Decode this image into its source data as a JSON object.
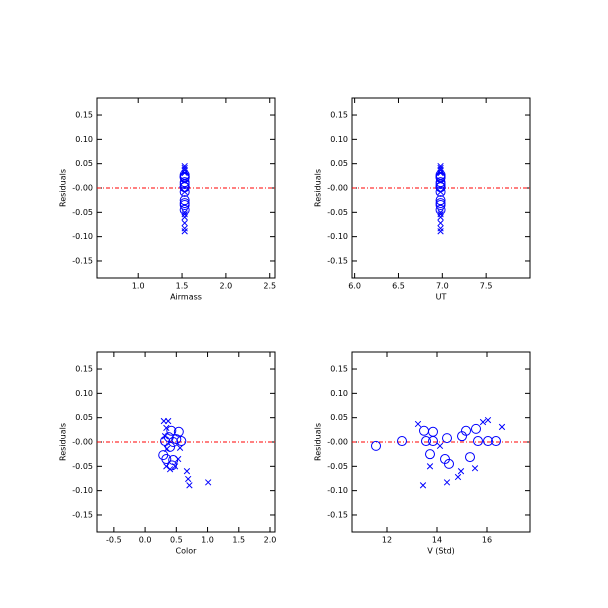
{
  "chart_data": [
    {
      "type": "scatter",
      "x_label": "Airmass",
      "y_label": "Residuals",
      "xlim": [
        0.53,
        2.56
      ],
      "ylim": [
        -0.185,
        0.185
      ],
      "xticks": [
        {
          "value": 1,
          "label": "1.0"
        },
        1.5,
        {
          "value": 2,
          "label": "2.0"
        },
        2.5
      ],
      "yticks": [
        {
          "value": -0.15,
          "label": "-0.15"
        },
        {
          "value": -0.1,
          "label": "-0.10"
        },
        {
          "value": -0.05,
          "label": "-0.05"
        },
        {
          "value": 0,
          "label": "-0.00"
        },
        {
          "value": 0.05,
          "label": "0.05"
        },
        {
          "value": 0.1,
          "label": "0.10"
        },
        0.15
      ],
      "hline": 0,
      "hline_color": "#ff0000",
      "series": [
        {
          "marker": "circle",
          "color": "#0000ff",
          "x": [
            1.53,
            1.53,
            1.53,
            1.53,
            1.53,
            1.53,
            1.53,
            1.53,
            1.53,
            1.53,
            1.53,
            1.53,
            1.53,
            1.53,
            1.53,
            1.53,
            1.53
          ],
          "y": [
            -0.008,
            0.002,
            0.023,
            0.002,
            -0.025,
            0.021,
            0.002,
            -0.035,
            -0.045,
            0.008,
            0.012,
            0.023,
            -0.031,
            0.027,
            0.002,
            0.002,
            0.002
          ]
        },
        {
          "marker": "cross",
          "color": "#0000ff",
          "x": [
            1.53,
            1.53,
            1.53,
            1.53,
            1.53,
            1.53,
            1.53,
            1.53,
            1.53,
            1.53,
            1.53
          ],
          "y": [
            0.037,
            -0.089,
            -0.05,
            -0.083,
            -0.072,
            -0.06,
            -0.054,
            0.041,
            0.045,
            0.031,
            -0.008
          ]
        }
      ]
    },
    {
      "type": "scatter",
      "x_label": "UT",
      "y_label": "Residuals",
      "xlim": [
        5.97,
        8.0
      ],
      "ylim": [
        -0.185,
        0.185
      ],
      "xticks": [
        {
          "value": 6,
          "label": "6.0"
        },
        6.5,
        {
          "value": 7,
          "label": "7.0"
        },
        7.5
      ],
      "yticks": [
        {
          "value": -0.15,
          "label": "-0.15"
        },
        {
          "value": -0.1,
          "label": "-0.10"
        },
        {
          "value": -0.05,
          "label": "-0.05"
        },
        {
          "value": 0,
          "label": "-0.00"
        },
        {
          "value": 0.05,
          "label": "0.05"
        },
        {
          "value": 0.1,
          "label": "0.10"
        },
        0.15
      ],
      "hline": 0,
      "hline_color": "#ff0000",
      "series": [
        {
          "marker": "circle",
          "color": "#0000ff",
          "x": [
            6.98,
            6.98,
            6.98,
            6.98,
            6.98,
            6.98,
            6.98,
            6.98,
            6.98,
            6.98,
            6.98,
            6.98,
            6.98,
            6.98,
            6.98,
            6.98,
            6.98
          ],
          "y": [
            -0.008,
            0.002,
            0.023,
            0.002,
            -0.025,
            0.021,
            0.002,
            -0.035,
            -0.045,
            0.008,
            0.012,
            0.023,
            -0.031,
            0.027,
            0.002,
            0.002,
            0.002
          ]
        },
        {
          "marker": "cross",
          "color": "#0000ff",
          "x": [
            6.98,
            6.98,
            6.98,
            6.98,
            6.98,
            6.98,
            6.98,
            6.98,
            6.98,
            6.98,
            6.98
          ],
          "y": [
            0.037,
            -0.089,
            -0.05,
            -0.083,
            -0.072,
            -0.06,
            -0.054,
            0.041,
            0.045,
            0.031,
            -0.008
          ]
        }
      ]
    },
    {
      "type": "scatter",
      "x_label": "Color",
      "y_label": "Residuals",
      "xlim": [
        -0.77,
        2.08
      ],
      "ylim": [
        -0.185,
        0.185
      ],
      "xticks": [
        {
          "value": -0.5,
          "label": "-0.5"
        },
        {
          "value": 0,
          "label": "0.0"
        },
        0.5,
        {
          "value": 1,
          "label": "1.0"
        },
        1.5,
        {
          "value": 2,
          "label": "2.0"
        }
      ],
      "yticks": [
        {
          "value": -0.15,
          "label": "-0.15"
        },
        {
          "value": -0.1,
          "label": "-0.10"
        },
        {
          "value": -0.05,
          "label": "-0.05"
        },
        {
          "value": 0,
          "label": "-0.00"
        },
        {
          "value": 0.05,
          "label": "0.05"
        },
        {
          "value": 0.1,
          "label": "0.10"
        },
        0.15
      ],
      "hline": 0,
      "hline_color": "#ff0000",
      "series": [
        {
          "marker": "circle",
          "color": "#0000ff",
          "x": [
            0.29,
            0.34,
            0.32,
            0.38,
            0.42,
            0.45,
            0.5,
            0.54,
            0.58,
            0.45,
            0.43,
            0.4
          ],
          "y": [
            -0.027,
            -0.035,
            0.002,
            0.01,
            0.023,
            0.0,
            0.006,
            0.021,
            0.002,
            -0.037,
            -0.048,
            -0.01
          ]
        },
        {
          "marker": "cross",
          "color": "#0000ff",
          "x": [
            0.3,
            0.37,
            0.34,
            0.32,
            0.35,
            0.34,
            0.4,
            0.48,
            0.53,
            0.67,
            0.69,
            0.71,
            1.01,
            0.56
          ],
          "y": [
            0.043,
            0.043,
            0.029,
            0.012,
            -0.014,
            -0.05,
            -0.056,
            -0.05,
            -0.035,
            -0.06,
            -0.076,
            -0.089,
            -0.083,
            -0.012
          ]
        }
      ]
    },
    {
      "type": "scatter",
      "x_label": "V (Std)",
      "y_label": "Residuals",
      "xlim": [
        10.6,
        17.72
      ],
      "ylim": [
        -0.185,
        0.185
      ],
      "xticks": [
        12,
        14,
        16
      ],
      "yticks": [
        {
          "value": -0.15,
          "label": "-0.15"
        },
        {
          "value": -0.1,
          "label": "-0.10"
        },
        {
          "value": -0.05,
          "label": "-0.05"
        },
        {
          "value": 0,
          "label": "-0.00"
        },
        {
          "value": 0.05,
          "label": "0.05"
        },
        {
          "value": 0.1,
          "label": "0.10"
        },
        0.15
      ],
      "hline": 0,
      "hline_color": "#ff0000",
      "series": [
        {
          "marker": "circle",
          "color": "#0000ff",
          "x": [
            11.56,
            12.6,
            13.48,
            13.56,
            13.72,
            13.84,
            13.84,
            14.32,
            14.48,
            14.4,
            15.0,
            15.16,
            15.32,
            15.56,
            15.64,
            16.04,
            16.36
          ],
          "y": [
            -0.008,
            0.002,
            0.023,
            0.002,
            -0.025,
            0.021,
            0.002,
            -0.035,
            -0.045,
            0.008,
            0.012,
            0.023,
            -0.031,
            0.027,
            0.002,
            0.002,
            0.002
          ]
        },
        {
          "marker": "cross",
          "color": "#0000ff",
          "x": [
            13.24,
            13.44,
            13.72,
            14.4,
            14.84,
            14.96,
            15.52,
            15.84,
            16.04,
            16.6,
            14.12
          ],
          "y": [
            0.037,
            -0.089,
            -0.05,
            -0.083,
            -0.072,
            -0.06,
            -0.054,
            0.041,
            0.045,
            0.031,
            -0.008
          ]
        }
      ]
    }
  ]
}
